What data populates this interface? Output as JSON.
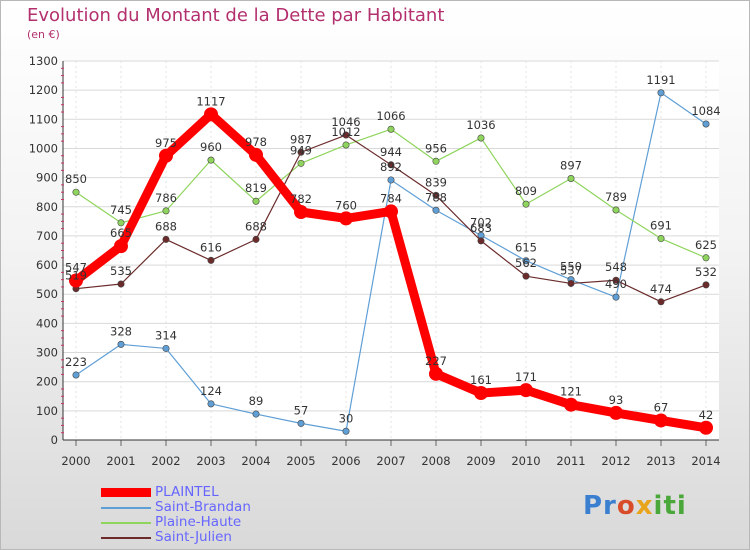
{
  "header": {
    "title": "Evolution du Montant de la Dette par Habitant",
    "subtitle": "(en €)"
  },
  "logo": {
    "p": "Pr",
    "o": "o",
    "x": "x",
    "iti": "iti"
  },
  "chart_data": {
    "type": "line",
    "title": "Evolution du Montant de la Dette par Habitant",
    "ylabel": "(en €)",
    "x": [
      "2000",
      "2001",
      "2002",
      "2003",
      "2004",
      "2005",
      "2006",
      "2007",
      "2008",
      "2009",
      "2010",
      "2011",
      "2012",
      "2013",
      "2014"
    ],
    "ylim": [
      0,
      1300
    ],
    "yticks": [
      0,
      100,
      200,
      300,
      400,
      500,
      600,
      700,
      800,
      900,
      1000,
      1100,
      1200,
      1300
    ],
    "grid": true,
    "legend_position": "bottom-left",
    "series": [
      {
        "name": "PLAINTEL",
        "color": "#ff0000",
        "values": [
          547,
          665,
          975,
          1117,
          978,
          782,
          760,
          784,
          227,
          161,
          171,
          121,
          93,
          67,
          42
        ],
        "labels": [
          "547",
          "665",
          "975",
          "1117",
          "978",
          "782",
          "760",
          "784",
          "227",
          "161",
          "171",
          "121",
          "93",
          "67",
          "42"
        ]
      },
      {
        "name": "Saint-Brandan",
        "color": "#5f9fd6",
        "values": [
          223,
          328,
          314,
          124,
          89,
          57,
          30,
          892,
          788,
          702,
          615,
          550,
          490,
          1191,
          1084
        ],
        "labels": [
          "223",
          "328",
          "314",
          "124",
          "89",
          "57",
          "30",
          "892",
          "788",
          "702",
          "615",
          "550",
          "490",
          "1191",
          "1084"
        ]
      },
      {
        "name": "Plaine-Haute",
        "color": "#8fd45c",
        "values": [
          850,
          745,
          786,
          960,
          819,
          949,
          1012,
          1066,
          956,
          1036,
          809,
          897,
          789,
          691,
          625
        ],
        "labels": [
          "850",
          "745",
          "786",
          "960",
          "819",
          "949",
          "1012",
          "1066",
          "956",
          "1036",
          "809",
          "897",
          "789",
          "691",
          "625"
        ]
      },
      {
        "name": "Saint-Julien",
        "color": "#6b2b2b",
        "values": [
          519,
          535,
          688,
          616,
          688,
          987,
          1046,
          944,
          839,
          683,
          562,
          537,
          548,
          474,
          532
        ],
        "labels": [
          "519",
          "535",
          "688",
          "616",
          "688",
          "987",
          "1046",
          "944",
          "839",
          "683",
          "562",
          "537",
          "548",
          "474",
          "532"
        ]
      }
    ]
  }
}
